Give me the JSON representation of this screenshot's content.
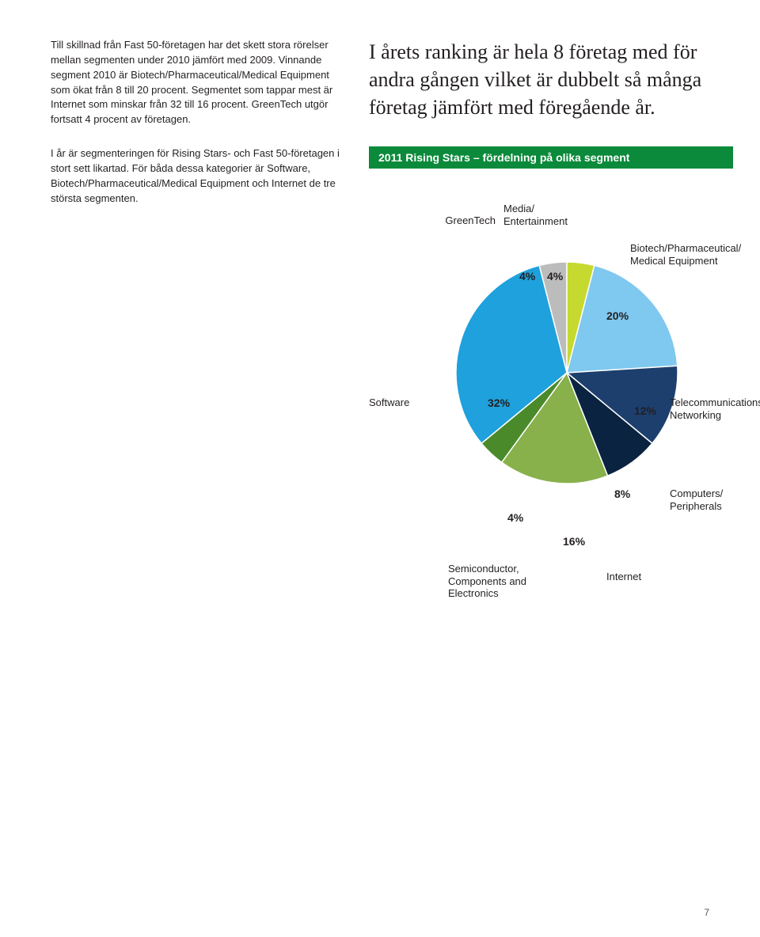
{
  "paragraphs": {
    "p1": "Till skillnad från Fast 50-företagen har det skett stora rörelser mellan segmenten under 2010 jämfört med 2009. Vinnande segment 2010 är Biotech/Pharmaceutical/Medical Equipment som ökat från 8 till 20 procent. Segmentet som tappar mest är Internet som minskar från 32 till 16 procent. GreenTech utgör fortsatt 4 procent av företagen.",
    "p2": "I år är segmenteringen för Rising Stars- och Fast 50-företagen i stort sett likartad. För båda dessa kategorier är Software, Biotech/Pharmaceutical/Medical Equipment och Internet de tre största segmenten.",
    "pullquote": "I årets ranking är hela 8 företag med för andra gången vilket är dubbelt så många företag jämfört med föregående år."
  },
  "chart": {
    "title": "2011 Rising Stars – fördelning på olika segment",
    "type": "pie",
    "background_color": "#ffffff",
    "slices": [
      {
        "label": "GreenTech",
        "value": 4,
        "pct": "4%",
        "color": "#bdbcbc"
      },
      {
        "label": "Media/\nEntertainment",
        "value": 4,
        "pct": "4%",
        "color": "#c6d92e"
      },
      {
        "label": "Biotech/Pharmaceutical/\nMedical Equipment",
        "value": 20,
        "pct": "20%",
        "color": "#7fc8ef"
      },
      {
        "label": "Telecommunications/\nNetworking",
        "value": 12,
        "pct": "12%",
        "color": "#1d3f6e"
      },
      {
        "label": "Computers/\nPeripherals",
        "value": 8,
        "pct": "8%",
        "color": "#0a2340"
      },
      {
        "label": "Internet",
        "value": 16,
        "pct": "16%",
        "color": "#88b04b"
      },
      {
        "label": "Semiconductor,\nComponents and\nElectronics",
        "value": 4,
        "pct": "4%",
        "color": "#4a8a2a"
      },
      {
        "label": "Software",
        "value": 32,
        "pct": "32%",
        "color": "#1ea1dc"
      }
    ],
    "start_angle_deg": -104.4,
    "label_fontsize": 13,
    "pct_fontsize": 14,
    "radius": 140
  },
  "page_number": "7"
}
